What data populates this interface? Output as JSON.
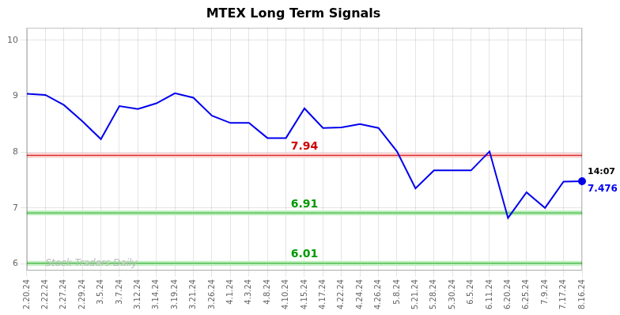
{
  "chart_data": {
    "type": "line",
    "title": "MTEX Long Term Signals",
    "categories": [
      "2.20.24",
      "2.22.24",
      "2.27.24",
      "2.29.24",
      "3.5.24",
      "3.7.24",
      "3.12.24",
      "3.14.24",
      "3.19.24",
      "3.21.24",
      "3.26.24",
      "4.1.24",
      "4.3.24",
      "4.8.24",
      "4.10.24",
      "4.15.24",
      "4.17.24",
      "4.22.24",
      "4.24.24",
      "4.26.24",
      "5.8.24",
      "5.21.24",
      "5.28.24",
      "5.30.24",
      "6.5.24",
      "6.11.24",
      "6.20.24",
      "6.25.24",
      "7.9.24",
      "7.17.24",
      "8.16.24"
    ],
    "values": [
      9.04,
      9.02,
      8.84,
      8.55,
      8.23,
      8.82,
      8.77,
      8.87,
      9.05,
      8.97,
      8.65,
      8.52,
      8.52,
      8.25,
      8.25,
      8.78,
      8.43,
      8.44,
      8.5,
      8.43,
      8.01,
      7.35,
      7.67,
      7.67,
      7.67,
      8.01,
      6.82,
      7.28,
      7.0,
      7.47,
      7.476
    ],
    "color": "#0000ee",
    "hlines": [
      {
        "value": 7.94,
        "label": "7.94",
        "color": "#cc0000",
        "band_color": "#ffcccc",
        "label_color": "#cc0000"
      },
      {
        "value": 6.91,
        "label": "6.91",
        "color": "#33aa33",
        "band_color": "#bbeebb",
        "label_color": "#009900"
      },
      {
        "value": 6.01,
        "label": "6.01",
        "color": "#33aa33",
        "band_color": "#bbeebb",
        "label_color": "#009900"
      }
    ],
    "annotations": [
      {
        "text": "14:07",
        "color": "#000000"
      },
      {
        "text": "7.476",
        "color": "#0000ee"
      }
    ],
    "watermark": {
      "text": "Stock Traders Daily",
      "color": "#bbbbbb"
    },
    "ylim": [
      5.88,
      10.22
    ],
    "yticks": [
      6,
      7,
      8,
      9,
      10
    ],
    "grid": true
  }
}
